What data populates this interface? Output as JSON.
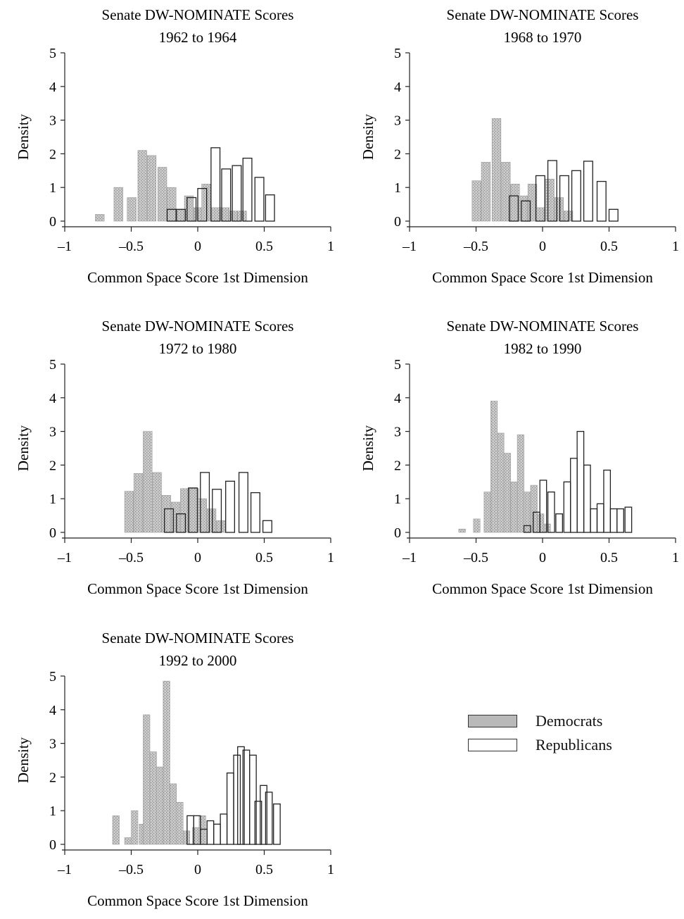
{
  "chart_data": [
    {
      "type": "bar",
      "title": "Senate DW-NOMINATE Scores",
      "subtitle": "1962 to 1964",
      "xlabel": "Common Space Score 1st Dimension",
      "ylabel": "Density",
      "xlim": [
        -1,
        1
      ],
      "ylim": [
        0,
        5
      ],
      "xticks": [
        -1,
        -0.5,
        0,
        0.5,
        1
      ],
      "xtick_labels": [
        "-1",
        "-0.5",
        "0",
        "0.5",
        "1"
      ],
      "yticks": [
        0,
        1,
        2,
        3,
        4,
        5
      ],
      "ytick_labels": [
        "0",
        "1",
        "2",
        "3",
        "4",
        "5"
      ],
      "bin_width": 0.067,
      "series": [
        {
          "name": "Democrats",
          "bins": [
            [
              -0.77,
              0.2
            ],
            [
              -0.63,
              1.0
            ],
            [
              -0.53,
              0.7
            ],
            [
              -0.45,
              2.1
            ],
            [
              -0.38,
              1.95
            ],
            [
              -0.3,
              1.6
            ],
            [
              -0.23,
              1.0
            ],
            [
              -0.16,
              0.35
            ],
            [
              -0.1,
              0.75
            ],
            [
              -0.03,
              0.4
            ],
            [
              0.03,
              1.1
            ],
            [
              0.1,
              0.4
            ],
            [
              0.17,
              0.4
            ],
            [
              0.23,
              0.3
            ],
            [
              0.3,
              0.3
            ]
          ]
        },
        {
          "name": "Republicans",
          "bins": [
            [
              -0.23,
              0.35
            ],
            [
              -0.16,
              0.35
            ],
            [
              -0.08,
              0.7
            ],
            [
              0.0,
              0.97
            ],
            [
              0.1,
              2.18
            ],
            [
              0.18,
              1.55
            ],
            [
              0.26,
              1.65
            ],
            [
              0.34,
              1.87
            ],
            [
              0.43,
              1.3
            ],
            [
              0.51,
              0.78
            ]
          ]
        }
      ]
    },
    {
      "type": "bar",
      "title": "Senate DW-NOMINATE Scores",
      "subtitle": "1968 to 1970",
      "xlabel": "Common Space Score 1st Dimension",
      "ylabel": "Density",
      "xlim": [
        -1,
        1
      ],
      "ylim": [
        0,
        5
      ],
      "xticks": [
        -1,
        -0.5,
        0,
        0.5,
        1
      ],
      "xtick_labels": [
        "-1",
        "-0.5",
        "0",
        "0.5",
        "1"
      ],
      "yticks": [
        0,
        1,
        2,
        3,
        4,
        5
      ],
      "ytick_labels": [
        "0",
        "1",
        "2",
        "3",
        "4",
        "5"
      ],
      "bin_width": 0.067,
      "series": [
        {
          "name": "Democrats",
          "bins": [
            [
              -0.53,
              1.2
            ],
            [
              -0.46,
              1.75
            ],
            [
              -0.38,
              3.05
            ],
            [
              -0.31,
              1.75
            ],
            [
              -0.24,
              1.1
            ],
            [
              -0.18,
              0.75
            ],
            [
              -0.11,
              1.1
            ],
            [
              -0.05,
              0.4
            ],
            [
              0.02,
              1.25
            ],
            [
              0.09,
              0.7
            ],
            [
              0.16,
              0.3
            ]
          ]
        },
        {
          "name": "Republicans",
          "bins": [
            [
              -0.25,
              0.75
            ],
            [
              -0.16,
              0.6
            ],
            [
              -0.05,
              1.35
            ],
            [
              0.04,
              1.8
            ],
            [
              0.13,
              1.35
            ],
            [
              0.22,
              1.5
            ],
            [
              0.31,
              1.78
            ],
            [
              0.41,
              1.18
            ],
            [
              0.5,
              0.35
            ]
          ]
        }
      ]
    },
    {
      "type": "bar",
      "title": "Senate DW-NOMINATE Scores",
      "subtitle": "1972 to 1980",
      "xlabel": "Common Space Score 1st Dimension",
      "ylabel": "Density",
      "xlim": [
        -1,
        1
      ],
      "ylim": [
        0,
        5
      ],
      "xticks": [
        -1,
        -0.5,
        0,
        0.5,
        1
      ],
      "xtick_labels": [
        "-1",
        "-0.5",
        "0",
        "0.5",
        "1"
      ],
      "yticks": [
        0,
        1,
        2,
        3,
        4,
        5
      ],
      "ytick_labels": [
        "0",
        "1",
        "2",
        "3",
        "4",
        "5"
      ],
      "bin_width": 0.067,
      "series": [
        {
          "name": "Democrats",
          "bins": [
            [
              -0.55,
              1.22
            ],
            [
              -0.48,
              1.75
            ],
            [
              -0.41,
              3.0
            ],
            [
              -0.34,
              1.78
            ],
            [
              -0.27,
              1.1
            ],
            [
              -0.2,
              0.9
            ],
            [
              -0.13,
              1.3
            ],
            [
              -0.06,
              1.3
            ],
            [
              0.0,
              1.0
            ],
            [
              0.07,
              0.7
            ],
            [
              0.14,
              0.35
            ]
          ]
        },
        {
          "name": "Republicans",
          "bins": [
            [
              -0.25,
              0.7
            ],
            [
              -0.16,
              0.55
            ],
            [
              -0.07,
              1.32
            ],
            [
              0.02,
              1.78
            ],
            [
              0.11,
              1.28
            ],
            [
              0.21,
              1.52
            ],
            [
              0.31,
              1.78
            ],
            [
              0.4,
              1.18
            ],
            [
              0.49,
              0.35
            ]
          ]
        }
      ]
    },
    {
      "type": "bar",
      "title": "Senate DW-NOMINATE Scores",
      "subtitle": "1982 to 1990",
      "xlabel": "Common Space Score 1st Dimension",
      "ylabel": "Density",
      "xlim": [
        -1,
        1
      ],
      "ylim": [
        0,
        5
      ],
      "xticks": [
        -1,
        -0.5,
        0,
        0.5,
        1
      ],
      "xtick_labels": [
        "-1",
        "-0.5",
        "0",
        "0.5",
        "1"
      ],
      "yticks": [
        0,
        1,
        2,
        3,
        4,
        5
      ],
      "ytick_labels": [
        "0",
        "1",
        "2",
        "3",
        "4",
        "5"
      ],
      "bin_width": 0.05,
      "series": [
        {
          "name": "Democrats",
          "bins": [
            [
              -0.63,
              0.1
            ],
            [
              -0.52,
              0.4
            ],
            [
              -0.44,
              1.2
            ],
            [
              -0.39,
              3.9
            ],
            [
              -0.34,
              2.95
            ],
            [
              -0.29,
              2.35
            ],
            [
              -0.24,
              1.5
            ],
            [
              -0.19,
              2.9
            ],
            [
              -0.14,
              1.2
            ],
            [
              -0.09,
              1.4
            ],
            [
              -0.04,
              0.55
            ],
            [
              0.01,
              0.25
            ]
          ]
        },
        {
          "name": "Republicans",
          "bins": [
            [
              -0.14,
              0.2
            ],
            [
              -0.07,
              0.6
            ],
            [
              -0.02,
              1.55
            ],
            [
              0.04,
              1.2
            ],
            [
              0.1,
              0.55
            ],
            [
              0.16,
              1.5
            ],
            [
              0.21,
              2.2
            ],
            [
              0.26,
              3.0
            ],
            [
              0.31,
              2.0
            ],
            [
              0.36,
              0.7
            ],
            [
              0.41,
              0.85
            ],
            [
              0.46,
              1.85
            ],
            [
              0.51,
              0.7
            ],
            [
              0.56,
              0.7
            ],
            [
              0.62,
              0.75
            ]
          ]
        }
      ]
    },
    {
      "type": "bar",
      "title": "Senate DW-NOMINATE Scores",
      "subtitle": "1992 to 2000",
      "xlabel": "Common Space Score 1st Dimension",
      "ylabel": "Density",
      "xlim": [
        -1,
        1
      ],
      "ylim": [
        0,
        5
      ],
      "xticks": [
        -1,
        -0.5,
        0,
        0.5,
        1
      ],
      "xtick_labels": [
        "-1",
        "-0.5",
        "0",
        "0.5",
        "1"
      ],
      "yticks": [
        0,
        1,
        2,
        3,
        4,
        5
      ],
      "ytick_labels": [
        "0",
        "1",
        "2",
        "3",
        "4",
        "5"
      ],
      "bin_width": 0.05,
      "series": [
        {
          "name": "Democrats",
          "bins": [
            [
              -0.64,
              0.85
            ],
            [
              -0.55,
              0.2
            ],
            [
              -0.5,
              1.0
            ],
            [
              -0.44,
              0.6
            ],
            [
              -0.41,
              3.85
            ],
            [
              -0.36,
              2.75
            ],
            [
              -0.31,
              2.3
            ],
            [
              -0.26,
              4.85
            ],
            [
              -0.21,
              1.8
            ],
            [
              -0.16,
              1.25
            ],
            [
              -0.11,
              0.4
            ],
            [
              -0.04,
              0.5
            ],
            [
              0.01,
              0.85
            ]
          ]
        },
        {
          "name": "Republicans",
          "bins": [
            [
              -0.08,
              0.85
            ],
            [
              -0.03,
              0.85
            ],
            [
              0.02,
              0.45
            ],
            [
              0.07,
              0.7
            ],
            [
              0.12,
              0.6
            ],
            [
              0.17,
              0.9
            ],
            [
              0.22,
              2.12
            ],
            [
              0.27,
              2.65
            ],
            [
              0.3,
              2.9
            ],
            [
              0.34,
              2.8
            ],
            [
              0.39,
              2.65
            ],
            [
              0.43,
              1.28
            ],
            [
              0.47,
              1.75
            ],
            [
              0.51,
              1.55
            ],
            [
              0.57,
              1.2
            ]
          ]
        }
      ]
    }
  ],
  "legend": {
    "items": [
      {
        "name": "Democrats",
        "label": "Democrats"
      },
      {
        "name": "Republicans",
        "label": "Republicans"
      }
    ]
  }
}
